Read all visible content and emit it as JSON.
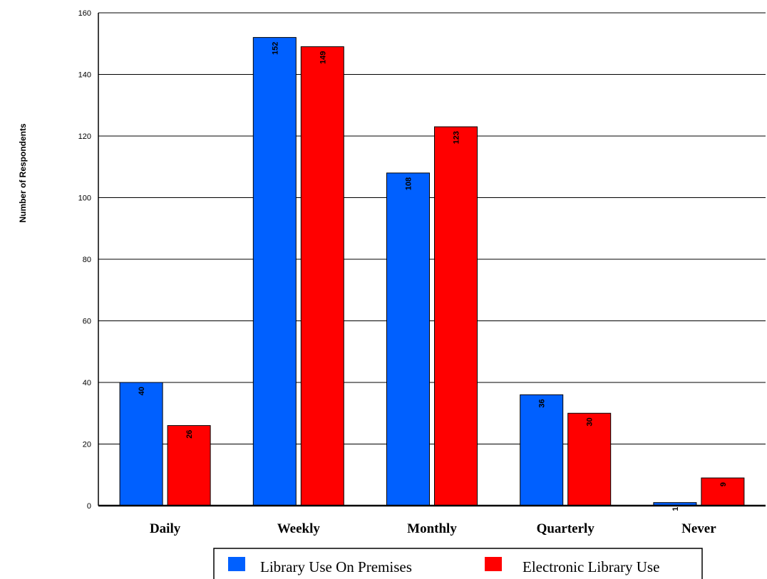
{
  "chart_data": {
    "type": "bar",
    "title": "",
    "xlabel": "",
    "ylabel": "Number of Respondents",
    "ylim": [
      0,
      160
    ],
    "yticks": [
      0,
      20,
      40,
      60,
      80,
      100,
      120,
      140,
      160
    ],
    "grid": true,
    "legend_position": "bottom",
    "categories": [
      "Daily",
      "Weekly",
      "Monthly",
      "Quarterly",
      "Never"
    ],
    "series": [
      {
        "name": "Library Use On Premises",
        "color": "#0060ff",
        "values": [
          40,
          152,
          108,
          36,
          1
        ]
      },
      {
        "name": "Electronic Library Use",
        "color": "#ff0000",
        "values": [
          26,
          149,
          123,
          30,
          9
        ]
      }
    ]
  }
}
